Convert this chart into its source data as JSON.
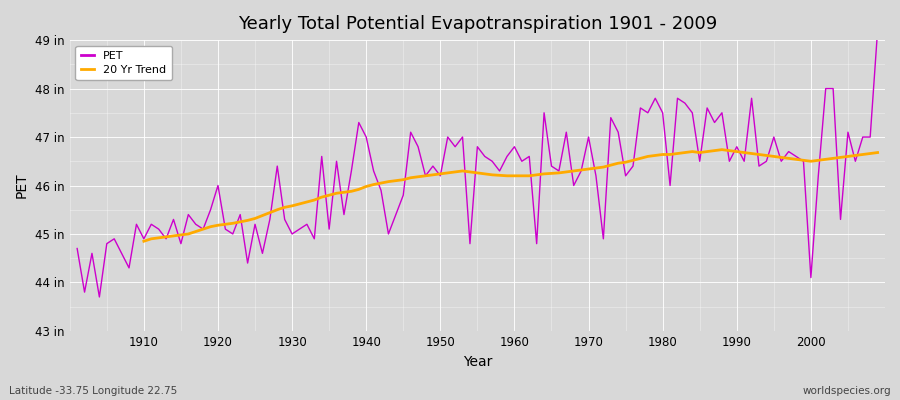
{
  "title": "Yearly Total Potential Evapotranspiration 1901 - 2009",
  "xlabel": "Year",
  "ylabel": "PET",
  "footnote_left": "Latitude -33.75 Longitude 22.75",
  "footnote_right": "worldspecies.org",
  "pet_color": "#cc00cc",
  "trend_color": "#ffaa00",
  "fig_bg": "#e8e8e8",
  "ax_bg": "#dcdcdc",
  "grid_color": "#ffffff",
  "ylim": [
    43,
    49
  ],
  "yticks": [
    43,
    44,
    45,
    46,
    47,
    48,
    49
  ],
  "ytick_labels": [
    "43 in",
    "44 in",
    "45 in",
    "46 in",
    "47 in",
    "48 in",
    "49 in"
  ],
  "years": [
    1901,
    1902,
    1903,
    1904,
    1905,
    1906,
    1907,
    1908,
    1909,
    1910,
    1911,
    1912,
    1913,
    1914,
    1915,
    1916,
    1917,
    1918,
    1919,
    1920,
    1921,
    1922,
    1923,
    1924,
    1925,
    1926,
    1927,
    1928,
    1929,
    1930,
    1931,
    1932,
    1933,
    1934,
    1935,
    1936,
    1937,
    1938,
    1939,
    1940,
    1941,
    1942,
    1943,
    1944,
    1945,
    1946,
    1947,
    1948,
    1949,
    1950,
    1951,
    1952,
    1953,
    1954,
    1955,
    1956,
    1957,
    1958,
    1959,
    1960,
    1961,
    1962,
    1963,
    1964,
    1965,
    1966,
    1967,
    1968,
    1969,
    1970,
    1971,
    1972,
    1973,
    1974,
    1975,
    1976,
    1977,
    1978,
    1979,
    1980,
    1981,
    1982,
    1983,
    1984,
    1985,
    1986,
    1987,
    1988,
    1989,
    1990,
    1991,
    1992,
    1993,
    1994,
    1995,
    1996,
    1997,
    1998,
    1999,
    2000,
    2001,
    2002,
    2003,
    2004,
    2005,
    2006,
    2007,
    2008,
    2009
  ],
  "pet_values": [
    44.7,
    43.8,
    44.6,
    43.7,
    44.8,
    44.9,
    44.6,
    44.3,
    45.2,
    44.9,
    45.2,
    45.1,
    44.9,
    45.3,
    44.8,
    45.4,
    45.2,
    45.1,
    45.5,
    46.0,
    45.1,
    45.0,
    45.4,
    44.4,
    45.2,
    44.6,
    45.3,
    46.4,
    45.3,
    45.0,
    45.1,
    45.2,
    44.9,
    46.6,
    45.1,
    46.5,
    45.4,
    46.3,
    47.3,
    47.0,
    46.3,
    45.9,
    45.0,
    45.4,
    45.8,
    47.1,
    46.8,
    46.2,
    46.4,
    46.2,
    47.0,
    46.8,
    47.0,
    44.8,
    46.8,
    46.6,
    46.5,
    46.3,
    46.6,
    46.8,
    46.5,
    46.6,
    44.8,
    47.5,
    46.4,
    46.3,
    47.1,
    46.0,
    46.3,
    47.0,
    46.2,
    44.9,
    47.4,
    47.1,
    46.2,
    46.4,
    47.6,
    47.5,
    47.8,
    47.5,
    46.0,
    47.8,
    47.7,
    47.5,
    46.5,
    47.6,
    47.3,
    47.5,
    46.5,
    46.8,
    46.5,
    47.8,
    46.4,
    46.5,
    47.0,
    46.5,
    46.7,
    46.6,
    46.5,
    44.1,
    46.2,
    48.0,
    48.0,
    45.3,
    47.1,
    46.5,
    47.0,
    47.0,
    49.2
  ],
  "trend_values": [
    null,
    null,
    null,
    null,
    null,
    null,
    null,
    null,
    null,
    44.85,
    44.9,
    44.92,
    44.94,
    44.96,
    44.98,
    45.0,
    45.05,
    45.1,
    45.15,
    45.18,
    45.2,
    45.22,
    45.25,
    45.28,
    45.32,
    45.38,
    45.44,
    45.5,
    45.55,
    45.58,
    45.62,
    45.66,
    45.7,
    45.76,
    45.8,
    45.84,
    45.86,
    45.88,
    45.92,
    45.98,
    46.02,
    46.05,
    46.08,
    46.1,
    46.12,
    46.16,
    46.18,
    46.2,
    46.22,
    46.24,
    46.26,
    46.28,
    46.3,
    46.28,
    46.26,
    46.24,
    46.22,
    46.21,
    46.2,
    46.2,
    46.2,
    46.2,
    46.22,
    46.24,
    46.25,
    46.26,
    46.28,
    46.3,
    46.32,
    46.34,
    46.36,
    46.38,
    46.42,
    46.46,
    46.48,
    46.52,
    46.56,
    46.6,
    46.62,
    46.64,
    46.64,
    46.66,
    46.68,
    46.7,
    46.68,
    46.7,
    46.72,
    46.74,
    46.72,
    46.7,
    46.68,
    46.66,
    46.64,
    46.62,
    46.6,
    46.58,
    46.56,
    46.54,
    46.52,
    46.5,
    46.52,
    46.54,
    46.56,
    46.58,
    46.6,
    46.62,
    46.64,
    46.66,
    46.68
  ]
}
